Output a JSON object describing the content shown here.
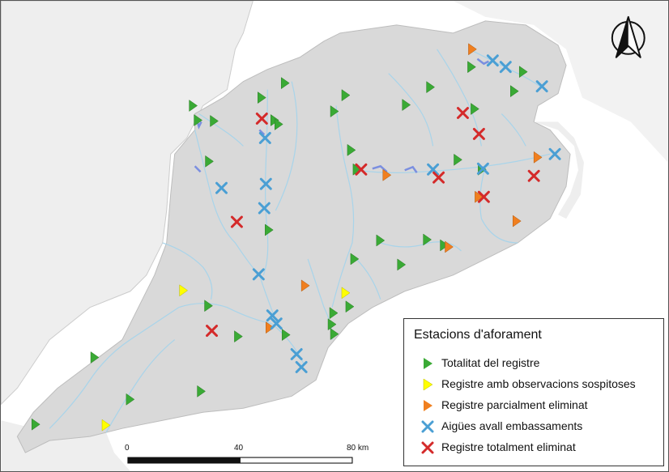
{
  "legend": {
    "title": "Estacions d'aforament",
    "items": [
      {
        "label": "Totalitat del registre",
        "symbol": "triangle",
        "color": "#3aaa35"
      },
      {
        "label": "Registre amb observacions sospitoses",
        "symbol": "triangle",
        "color": "#ffff00"
      },
      {
        "label": "Registre parcialment eliminat",
        "symbol": "triangle",
        "color": "#f07f1f"
      },
      {
        "label": "Aigües avall embassaments",
        "symbol": "cross",
        "color": "#4a9fd4"
      },
      {
        "label": "Registre totalment eliminat",
        "symbol": "cross",
        "color": "#d42a2a"
      }
    ]
  },
  "scale_bar": {
    "labels": [
      "0",
      "40",
      "80 km"
    ]
  },
  "north_arrow": {
    "icon": "north-arrow-icon"
  },
  "colors": {
    "land": "#d9d9d9",
    "outer_land": "#eeeeee",
    "river": "#a8d4ea",
    "reservoir": "#7b8fe0"
  }
}
